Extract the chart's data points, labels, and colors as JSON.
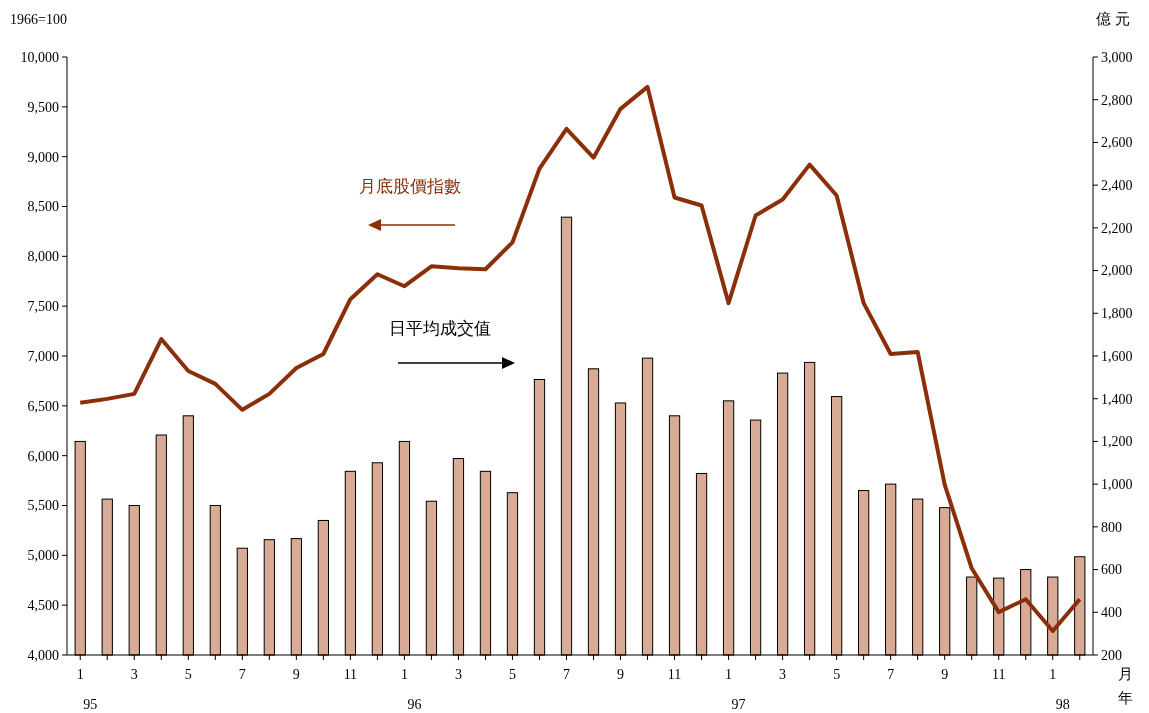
{
  "chart_data": {
    "type": "bar",
    "ylabel": "1966=100",
    "y2label": "億 元",
    "xlabel": "月年",
    "categories": [
      "1\n95",
      null,
      "3",
      null,
      "5",
      null,
      "7",
      null,
      "9",
      null,
      "11",
      null,
      "1\n96",
      null,
      "3",
      null,
      "5",
      null,
      "7",
      null,
      "9",
      null,
      "11",
      null,
      "1\n97",
      null,
      "3",
      null,
      "5",
      null,
      "7",
      null,
      "9",
      null,
      "11",
      null,
      "1\n98",
      null
    ],
    "series": [
      {
        "name": "日平均成交值",
        "axis": "y2",
        "color": "#d9ab95",
        "values": [
          1200,
          930,
          900,
          1230,
          1320,
          900,
          700,
          740,
          745,
          830,
          1060,
          1100,
          1200,
          920,
          1120,
          1060,
          960,
          1490,
          2250,
          1540,
          1380,
          1590,
          1320,
          1050,
          1390,
          1300,
          1520,
          1570,
          1410,
          970,
          1000,
          930,
          890,
          565,
          560,
          600,
          565,
          660
        ]
      },
      {
        "name": "月底股價指數",
        "type": "line",
        "axis": "y",
        "color": "#8b2e0a",
        "values": [
          6530,
          6570,
          6620,
          7170,
          6850,
          6720,
          6460,
          6620,
          6880,
          7020,
          7570,
          7820,
          7700,
          7900,
          7880,
          7870,
          8140,
          8880,
          9280,
          8990,
          9480,
          9700,
          8590,
          8510,
          7530,
          8410,
          8570,
          8920,
          8610,
          7530,
          7020,
          7040,
          5710,
          4870,
          4430,
          4560,
          4240,
          4560
        ]
      }
    ],
    "ylim": [
      4000,
      10000
    ],
    "yticks": [
      {
        "value": 4000,
        "label": "4,000"
      },
      {
        "value": 4500,
        "label": "4,500"
      },
      {
        "value": 5000,
        "label": "5,000"
      },
      {
        "value": 5500,
        "label": "5,500"
      },
      {
        "value": 6000,
        "label": "6,000"
      },
      {
        "value": 6500,
        "label": "6,500"
      },
      {
        "value": 7000,
        "label": "7,000"
      },
      {
        "value": 7500,
        "label": "7,500"
      },
      {
        "value": 8000,
        "label": "8,000"
      },
      {
        "value": 8500,
        "label": "8,500"
      },
      {
        "value": 9000,
        "label": "9,000"
      },
      {
        "value": 9500,
        "label": "9,500"
      },
      {
        "value": 10000,
        "label": "10,000"
      }
    ],
    "y2lim": [
      200,
      3000
    ],
    "y2ticks": [
      200,
      400,
      600,
      800,
      {
        "value": 1000,
        "label": "1,000"
      },
      {
        "value": 1200,
        "label": "1,200"
      },
      {
        "value": 1400,
        "label": "1,400"
      },
      {
        "value": 1600,
        "label": "1,600"
      },
      {
        "value": 1800,
        "label": "1,800"
      },
      {
        "value": 2000,
        "label": "2,000"
      },
      {
        "value": 2200,
        "label": "2,200"
      },
      {
        "value": 2400,
        "label": "2,400"
      },
      {
        "value": 2600,
        "label": "2,600"
      },
      {
        "value": 2800,
        "label": "2,800"
      },
      {
        "value": 3000,
        "label": "3,000"
      }
    ],
    "grid": false,
    "legend": false
  }
}
